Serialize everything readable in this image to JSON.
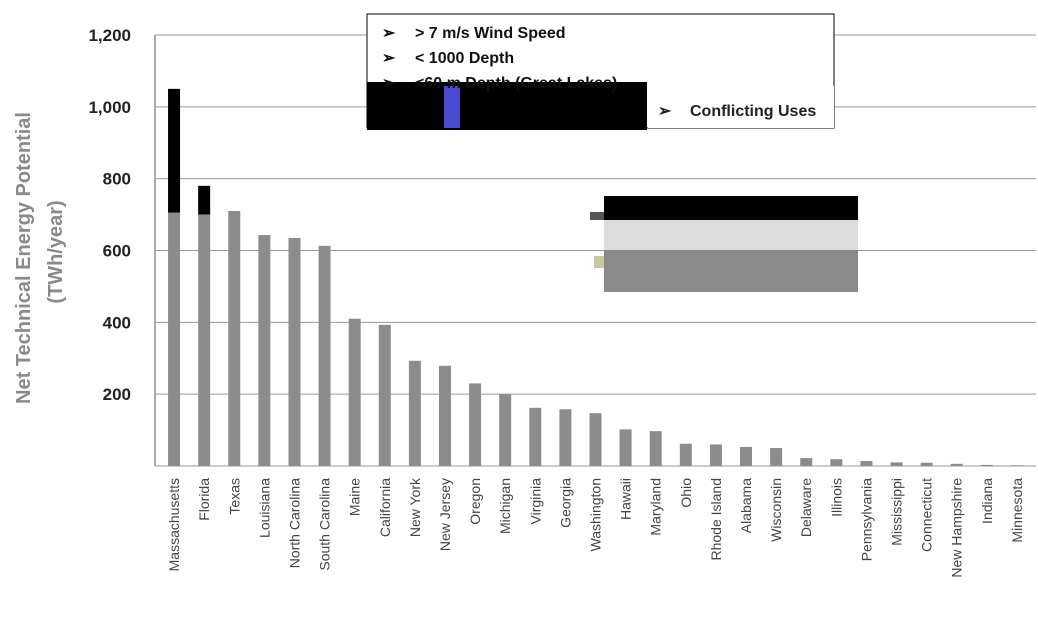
{
  "chart_data": {
    "type": "bar",
    "title": "",
    "xlabel": "",
    "ylabel": "Net Technical Energy Potential",
    "ylabel_line2": "(TWh/year)",
    "ylim": [
      0,
      1200
    ],
    "y_ticks": [
      0,
      200,
      400,
      600,
      800,
      1000,
      1200
    ],
    "y_tick_labels": [
      "",
      "200",
      "400",
      "600",
      "800",
      "1,000",
      "1,200"
    ],
    "grid": true,
    "categories": [
      "Massachusetts",
      "Florida",
      "Texas",
      "Louisiana",
      "North Carolina",
      "South Carolina",
      "Maine",
      "California",
      "New York",
      "New Jersey",
      "Oregon",
      "Michigan",
      "Virginia",
      "Georgia",
      "Washington",
      "Hawaii",
      "Maryland",
      "Ohio",
      "Rhode Island",
      "Alabama",
      "Wisconsin",
      "Delaware",
      "Illinois",
      "Pennsylvania",
      "Mississippi",
      "Connecticut",
      "New Hampshire",
      "Indiana",
      "Minnesota"
    ],
    "values": [
      1050,
      780,
      710,
      643,
      635,
      613,
      410,
      393,
      293,
      279,
      230,
      200,
      162,
      158,
      147,
      102,
      97,
      62,
      60,
      53,
      50,
      22,
      19,
      14,
      10,
      9,
      6,
      3,
      2
    ],
    "excluded_values": [
      345,
      80,
      0,
      0,
      0,
      0,
      0,
      0,
      0,
      0,
      0,
      0,
      0,
      0,
      0,
      0,
      0,
      0,
      0,
      0,
      0,
      0,
      0,
      0,
      0,
      0,
      0,
      0,
      0
    ],
    "series_colors": {
      "remaining": "#8c8c8c",
      "excluded": "#000000"
    },
    "legend": {
      "placement": "top-center",
      "items": [
        "> 7 m/s Wind Speed",
        "< 1000 Depth",
        "<60 m Depth (Great Lakes)"
      ],
      "overlay_item": "Conflicting Uses"
    }
  }
}
